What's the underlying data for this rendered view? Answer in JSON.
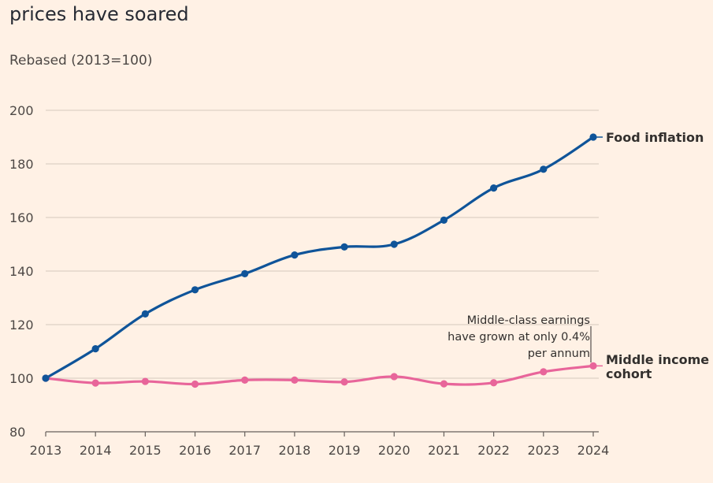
{
  "chart_data": {
    "type": "line",
    "title": "prices have soared",
    "subtitle": "Rebased (2013=100)",
    "x": [
      2013,
      2014,
      2015,
      2016,
      2017,
      2018,
      2019,
      2020,
      2021,
      2022,
      2023,
      2024
    ],
    "x_ticks": [
      "2013",
      "2014",
      "2015",
      "2016",
      "2017",
      "2018",
      "2019",
      "2020",
      "2021",
      "2022",
      "2023",
      "2024"
    ],
    "ylim": [
      80,
      200
    ],
    "y_ticks": [
      "80",
      "100",
      "120",
      "140",
      "160",
      "180",
      "200"
    ],
    "grid": true,
    "series": [
      {
        "name": "Food inflation",
        "color": "#0f5499",
        "values": [
          100,
          111,
          124,
          133,
          139,
          146,
          149,
          150,
          159,
          171,
          178,
          190
        ]
      },
      {
        "name": "Middle income cohort",
        "label_lines": [
          "Middle income",
          "cohort"
        ],
        "color": "#e8659a",
        "values": [
          100,
          98.2,
          98.8,
          97.8,
          99.3,
          99.3,
          98.6,
          100.6,
          97.9,
          98.3,
          102.4,
          104.6
        ]
      }
    ],
    "annotation": {
      "lines": [
        "Middle-class earnings",
        "have grown at only 0.4%",
        "per annum"
      ]
    }
  }
}
